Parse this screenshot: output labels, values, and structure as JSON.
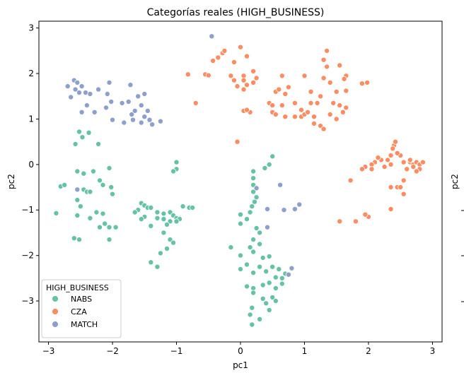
{
  "chart_data": {
    "type": "scatter",
    "title": "Categorías reales (HIGH_BUSINESS)",
    "xlabel": "pc1",
    "ylabel": "pc2",
    "xlim": [
      -3.15,
      3.15
    ],
    "ylim": [
      -3.9,
      3.15
    ],
    "xticks": [
      -3,
      -2,
      -1,
      0,
      1,
      2,
      3
    ],
    "yticks": [
      -3,
      -2,
      -1,
      0,
      1,
      2,
      3
    ],
    "grid": false,
    "legend": {
      "title": "HIGH_BUSINESS",
      "placement": "lower-left"
    },
    "right_panel_ylabel": "pc2",
    "series": [
      {
        "name": "NABS",
        "color": "#66c2a5",
        "points": [
          [
            -2.52,
            0.72
          ],
          [
            -2.37,
            0.7
          ],
          [
            -2.47,
            0.6
          ],
          [
            -2.58,
            0.45
          ],
          [
            -2.22,
            0.45
          ],
          [
            -2.81,
            -0.48
          ],
          [
            -2.75,
            -0.45
          ],
          [
            -2.88,
            -1.07
          ],
          [
            -2.55,
            -0.15
          ],
          [
            -2.45,
            -0.2
          ],
          [
            -2.3,
            -0.15
          ],
          [
            -2.2,
            -0.35
          ],
          [
            -2.15,
            -0.45
          ],
          [
            -2.05,
            -0.08
          ],
          [
            -2.02,
            -0.5
          ],
          [
            -2.45,
            -0.55
          ],
          [
            -2.4,
            -0.6
          ],
          [
            -2.35,
            -0.6
          ],
          [
            -2.55,
            -0.78
          ],
          [
            -2.5,
            -0.92
          ],
          [
            -2.25,
            -1.05
          ],
          [
            -2.15,
            -1.08
          ],
          [
            -2.55,
            -1.12
          ],
          [
            -2.35,
            -1.18
          ],
          [
            -2.12,
            -1.3
          ],
          [
            -2.2,
            -1.38
          ],
          [
            -2.05,
            -1.38
          ],
          [
            -2.6,
            -1.62
          ],
          [
            -2.52,
            -1.65
          ],
          [
            -2.05,
            -1.65
          ],
          [
            -2.0,
            -0.65
          ],
          [
            -1.95,
            -1.38
          ],
          [
            -1.0,
            0.05
          ],
          [
            -1.0,
            -0.1
          ],
          [
            -1.05,
            -0.15
          ],
          [
            -1.55,
            -0.85
          ],
          [
            -1.5,
            -0.9
          ],
          [
            -1.45,
            -0.95
          ],
          [
            -1.4,
            -0.95
          ],
          [
            -1.6,
            -1.0
          ],
          [
            -1.65,
            -1.05
          ],
          [
            -1.3,
            -1.05
          ],
          [
            -1.2,
            -1.08
          ],
          [
            -1.1,
            -1.05
          ],
          [
            -0.9,
            -0.92
          ],
          [
            -0.8,
            -0.95
          ],
          [
            -0.75,
            -0.95
          ],
          [
            -1.05,
            -1.12
          ],
          [
            -1.0,
            -1.18
          ],
          [
            -0.95,
            -1.2
          ],
          [
            -1.0,
            -1.25
          ],
          [
            -1.1,
            -1.25
          ],
          [
            -1.2,
            -1.2
          ],
          [
            -1.3,
            -1.18
          ],
          [
            -1.5,
            -1.15
          ],
          [
            -1.55,
            -1.2
          ],
          [
            -1.4,
            -1.35
          ],
          [
            -1.15,
            -1.32
          ],
          [
            -1.2,
            -1.5
          ],
          [
            -1.1,
            -1.65
          ],
          [
            -1.05,
            -1.72
          ],
          [
            -1.15,
            -1.85
          ],
          [
            -1.25,
            -1.95
          ],
          [
            -1.4,
            -2.15
          ],
          [
            -1.3,
            -2.25
          ],
          [
            0.5,
            0.18
          ],
          [
            0.45,
            0.0
          ],
          [
            0.38,
            -0.08
          ],
          [
            0.2,
            -0.15
          ],
          [
            0.2,
            -0.3
          ],
          [
            0.2,
            -0.45
          ],
          [
            0.2,
            -0.6
          ],
          [
            0.25,
            -0.72
          ],
          [
            0.22,
            -0.82
          ],
          [
            0.18,
            -0.92
          ],
          [
            0.15,
            -1.05
          ],
          [
            0.0,
            -1.1
          ],
          [
            0.1,
            -1.2
          ],
          [
            0.0,
            -1.3
          ],
          [
            0.25,
            -1.4
          ],
          [
            0.3,
            -1.5
          ],
          [
            0.2,
            -1.65
          ],
          [
            0.3,
            -1.75
          ],
          [
            0.15,
            -1.82
          ],
          [
            -0.15,
            -1.82
          ],
          [
            0.0,
            -2.0
          ],
          [
            0.2,
            -1.92
          ],
          [
            0.35,
            -2.05
          ],
          [
            0.45,
            -2.02
          ],
          [
            0.3,
            -2.25
          ],
          [
            0.1,
            -2.2
          ],
          [
            0.0,
            -2.3
          ],
          [
            0.2,
            -2.38
          ],
          [
            0.4,
            -2.35
          ],
          [
            0.5,
            -2.25
          ],
          [
            0.6,
            -2.3
          ],
          [
            0.7,
            -2.4
          ],
          [
            0.8,
            -2.28
          ],
          [
            0.75,
            -2.42
          ],
          [
            0.55,
            -2.48
          ],
          [
            0.65,
            -2.5
          ],
          [
            0.45,
            -2.6
          ],
          [
            0.35,
            -2.65
          ],
          [
            0.55,
            -2.72
          ],
          [
            0.65,
            -2.62
          ],
          [
            0.2,
            -2.72
          ],
          [
            0.1,
            -2.68
          ],
          [
            0.2,
            -2.82
          ],
          [
            0.35,
            -2.95
          ],
          [
            0.5,
            -2.92
          ],
          [
            0.4,
            -3.05
          ],
          [
            0.55,
            -3.0
          ],
          [
            0.18,
            -3.15
          ],
          [
            0.45,
            -3.2
          ],
          [
            0.15,
            -3.3
          ],
          [
            0.3,
            -3.4
          ],
          [
            0.18,
            -3.52
          ]
        ]
      },
      {
        "name": "CZA",
        "color": "#fc8d62",
        "points": [
          [
            -0.43,
            2.28
          ],
          [
            -0.28,
            2.45
          ],
          [
            -0.25,
            2.5
          ],
          [
            -0.35,
            2.35
          ],
          [
            -0.1,
            2.25
          ],
          [
            0.1,
            2.38
          ],
          [
            0.0,
            2.58
          ],
          [
            -0.82,
            1.98
          ],
          [
            -0.55,
            1.98
          ],
          [
            -0.5,
            1.96
          ],
          [
            -0.15,
            1.95
          ],
          [
            0.05,
            1.95
          ],
          [
            0.2,
            2.05
          ],
          [
            0.25,
            1.9
          ],
          [
            0.05,
            1.85
          ],
          [
            -0.05,
            1.72
          ],
          [
            0.05,
            1.65
          ],
          [
            0.1,
            1.75
          ],
          [
            0.2,
            1.8
          ],
          [
            -0.1,
            1.85
          ],
          [
            -0.7,
            1.35
          ],
          [
            0.05,
            1.18
          ],
          [
            0.15,
            1.15
          ],
          [
            0.45,
            1.35
          ],
          [
            0.55,
            1.6
          ],
          [
            0.6,
            1.65
          ],
          [
            0.75,
            1.7
          ],
          [
            0.7,
            1.55
          ],
          [
            0.65,
            1.3
          ],
          [
            0.5,
            1.3
          ],
          [
            0.5,
            1.15
          ],
          [
            0.55,
            1.1
          ],
          [
            0.7,
            1.05
          ],
          [
            0.85,
            1.05
          ],
          [
            0.95,
            1.05
          ],
          [
            1.0,
            1.1
          ],
          [
            0.95,
            1.2
          ],
          [
            0.85,
            1.35
          ],
          [
            0.65,
            1.95
          ],
          [
            1.0,
            1.95
          ],
          [
            1.1,
            1.35
          ],
          [
            1.05,
            1.15
          ],
          [
            1.2,
            1.35
          ],
          [
            1.25,
            1.5
          ],
          [
            1.1,
            1.6
          ],
          [
            1.15,
            1.05
          ],
          [
            1.15,
            0.9
          ],
          [
            1.25,
            0.85
          ],
          [
            1.3,
            0.78
          ],
          [
            1.4,
            1.1
          ],
          [
            1.45,
            1.35
          ],
          [
            1.55,
            1.3
          ],
          [
            1.5,
            1.6
          ],
          [
            1.4,
            1.8
          ],
          [
            1.3,
            1.9
          ],
          [
            1.35,
            2.15
          ],
          [
            1.3,
            2.3
          ],
          [
            1.35,
            2.5
          ],
          [
            1.55,
            2.18
          ],
          [
            1.65,
            1.95
          ],
          [
            1.62,
            1.88
          ],
          [
            1.65,
            1.62
          ],
          [
            1.65,
            1.25
          ],
          [
            1.6,
            1.15
          ],
          [
            1.5,
            1.0
          ],
          [
            1.98,
            1.8
          ],
          [
            1.9,
            1.78
          ],
          [
            1.55,
            -1.25
          ],
          [
            1.8,
            -1.25
          ],
          [
            1.72,
            -0.35
          ],
          [
            2.0,
            -1.15
          ],
          [
            1.95,
            -1.1
          ],
          [
            2.35,
            -0.98
          ],
          [
            2.35,
            -0.5
          ],
          [
            2.45,
            -0.5
          ],
          [
            2.55,
            -0.35
          ],
          [
            2.55,
            -0.65
          ],
          [
            2.5,
            -0.5
          ],
          [
            2.6,
            -0.1
          ],
          [
            2.65,
            0.05
          ],
          [
            2.7,
            0.0
          ],
          [
            2.65,
            0.1
          ],
          [
            2.75,
            0.05
          ],
          [
            2.8,
            0.0
          ],
          [
            2.85,
            0.05
          ],
          [
            2.8,
            -0.1
          ],
          [
            2.75,
            -0.15
          ],
          [
            2.7,
            -0.05
          ],
          [
            2.55,
            0.05
          ],
          [
            2.5,
            0.2
          ],
          [
            2.45,
            0.25
          ],
          [
            2.4,
            0.42
          ],
          [
            2.38,
            0.35
          ],
          [
            2.35,
            0.2
          ],
          [
            2.3,
            0.1
          ],
          [
            2.35,
            0.0
          ],
          [
            2.25,
            -0.05
          ],
          [
            2.2,
            0.1
          ],
          [
            2.15,
            0.15
          ],
          [
            2.1,
            0.05
          ],
          [
            2.05,
            0.0
          ],
          [
            2.05,
            -0.1
          ],
          [
            1.95,
            -0.05
          ],
          [
            1.9,
            -0.1
          ],
          [
            2.42,
            0.5
          ],
          [
            -0.05,
            0.5
          ],
          [
            0.1,
            1.2
          ]
        ]
      },
      {
        "name": "MATCH",
        "color": "#8da0cb",
        "points": [
          [
            -0.45,
            2.82
          ],
          [
            -2.6,
            1.85
          ],
          [
            -2.55,
            1.8
          ],
          [
            -2.05,
            1.8
          ],
          [
            -2.7,
            1.72
          ],
          [
            -2.58,
            1.65
          ],
          [
            -2.48,
            1.72
          ],
          [
            -2.52,
            1.58
          ],
          [
            -2.42,
            1.58
          ],
          [
            -2.35,
            1.55
          ],
          [
            -2.65,
            1.48
          ],
          [
            -2.22,
            1.65
          ],
          [
            -2.08,
            1.55
          ],
          [
            -2.02,
            1.38
          ],
          [
            -2.4,
            1.3
          ],
          [
            -2.1,
            1.25
          ],
          [
            -2.28,
            1.15
          ],
          [
            -2.48,
            1.15
          ],
          [
            -1.72,
            1.75
          ],
          [
            -1.6,
            1.5
          ],
          [
            -1.75,
            1.38
          ],
          [
            -1.5,
            1.55
          ],
          [
            -1.85,
            1.35
          ],
          [
            -1.55,
            1.3
          ],
          [
            -1.45,
            1.18
          ],
          [
            -1.65,
            1.18
          ],
          [
            -1.7,
            1.1
          ],
          [
            -1.5,
            1.05
          ],
          [
            -1.42,
            0.98
          ],
          [
            -1.55,
            0.92
          ],
          [
            -1.68,
            0.98
          ],
          [
            -1.82,
            0.92
          ],
          [
            -2.0,
            0.98
          ],
          [
            -1.25,
            0.95
          ],
          [
            -1.38,
            0.88
          ],
          [
            -2.55,
            -0.55
          ],
          [
            0.25,
            -0.52
          ],
          [
            0.62,
            -0.45
          ],
          [
            0.42,
            -0.98
          ],
          [
            0.68,
            -1.0
          ],
          [
            0.85,
            -0.98
          ],
          [
            0.92,
            -0.88
          ],
          [
            0.42,
            -1.38
          ],
          [
            0.75,
            -2.42
          ],
          [
            0.8,
            -2.28
          ]
        ]
      }
    ]
  }
}
